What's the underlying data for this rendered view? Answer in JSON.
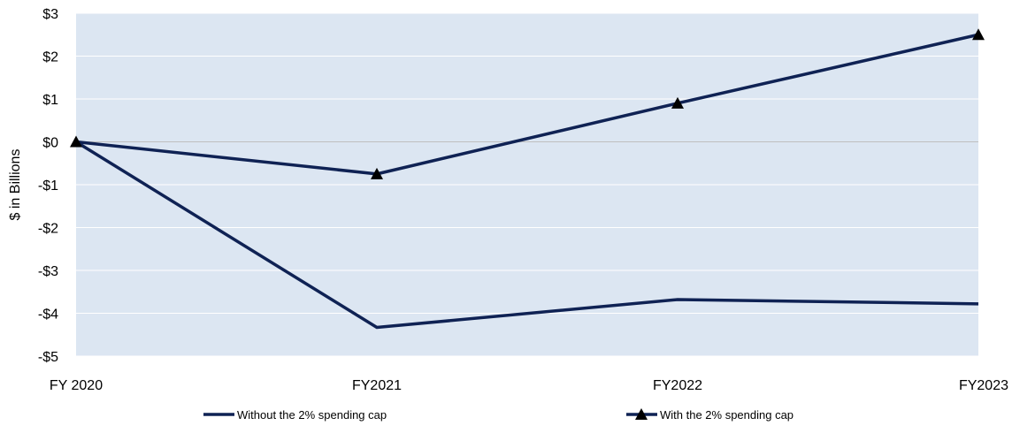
{
  "chart_data": {
    "type": "line",
    "title": "",
    "xlabel": "",
    "ylabel": "$ in Billions",
    "categories": [
      "FY 2020",
      "FY2021",
      "FY2022",
      "FY2023"
    ],
    "ylim": [
      -5,
      3
    ],
    "yticks": [
      3,
      2,
      1,
      0,
      -1,
      -2,
      -3,
      -4,
      -5
    ],
    "ytick_labels": [
      "$3",
      "$2",
      "$1",
      "$0",
      "-$1",
      "-$2",
      "-$3",
      "-$4",
      "-$5"
    ],
    "grid": true,
    "legend_position": "bottom",
    "series": [
      {
        "name": "Without the 2% spending cap",
        "values": [
          0,
          -4.33,
          -3.68,
          -3.78
        ],
        "marker": "none"
      },
      {
        "name": "With the 2% spending cap",
        "values": [
          0,
          -0.75,
          0.9,
          2.5
        ],
        "marker": "triangle"
      }
    ],
    "colors": {
      "plot_background": "#dce6f2",
      "line": "#0f2254",
      "marker": "#000000",
      "gridline": "#ffffff",
      "zero_line": "#bfbfbf"
    }
  }
}
